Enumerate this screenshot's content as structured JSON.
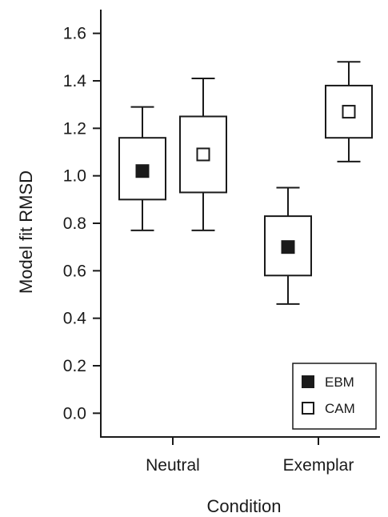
{
  "chart_data": {
    "type": "boxplot",
    "xlabel": "Condition",
    "ylabel": "Model fit RMSD",
    "ylim": [
      -0.1,
      1.7
    ],
    "yticks": [
      "0.0",
      "0.2",
      "0.4",
      "0.6",
      "0.8",
      "1.0",
      "1.2",
      "1.4",
      "1.6"
    ],
    "categories": [
      "Neutral",
      "Exemplar"
    ],
    "grid": false,
    "legend": {
      "position": "bottom-right",
      "entries": [
        "EBM",
        "CAM"
      ]
    },
    "series": [
      {
        "name": "EBM",
        "marker": "filled-square",
        "color": "#1a1a1a",
        "boxes": [
          {
            "category": "Neutral",
            "whisker_low": 0.77,
            "q1": 0.9,
            "median": 1.02,
            "q3": 1.16,
            "whisker_high": 1.29
          },
          {
            "category": "Exemplar",
            "whisker_low": 0.46,
            "q1": 0.58,
            "median": 0.7,
            "q3": 0.83,
            "whisker_high": 0.95
          }
        ]
      },
      {
        "name": "CAM",
        "marker": "open-square",
        "color": "#1a1a1a",
        "boxes": [
          {
            "category": "Neutral",
            "whisker_low": 0.77,
            "q1": 0.93,
            "median": 1.09,
            "q3": 1.25,
            "whisker_high": 1.41
          },
          {
            "category": "Exemplar",
            "whisker_low": 1.06,
            "q1": 1.16,
            "median": 1.27,
            "q3": 1.38,
            "whisker_high": 1.48
          }
        ]
      }
    ]
  }
}
